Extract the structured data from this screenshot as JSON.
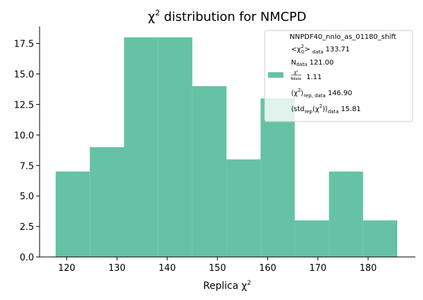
{
  "colors": {
    "bar": "#66c2a5",
    "axis": "#000000",
    "legend_border": "#cccccc"
  },
  "chart_data": {
    "type": "histogram",
    "title_base": "χ",
    "title_sup": "2",
    "title_rest": " distribution for NMCPD",
    "xlabel_base": "Replica χ",
    "xlabel_sup": "2",
    "xlim": [
      114.6,
      189.4
    ],
    "ylim": [
      0,
      18.9
    ],
    "xticks": [
      120,
      130,
      140,
      150,
      160,
      170,
      180
    ],
    "yticks": [
      "0.0",
      "2.5",
      "5.0",
      "7.5",
      "10.0",
      "12.5",
      "15.0",
      "17.5"
    ],
    "bins": [
      117.8,
      124.6,
      131.4,
      138.2,
      145.0,
      151.8,
      158.6,
      165.4,
      172.2,
      179.0,
      185.8
    ],
    "counts": [
      7,
      9,
      18,
      18,
      14,
      8,
      13,
      3,
      7,
      3
    ],
    "legend": {
      "title": "NNPDF40_nnlo_as_01180_shift",
      "entries": [
        {
          "pre": "<χ",
          "sup": "2",
          "sub0": "0",
          "post": "> ",
          "sub": "data",
          "value": "133.71"
        },
        {
          "pre": "N",
          "sub": "data",
          "value": "121.00"
        },
        {
          "frac_num": "χ²",
          "frac_den": "Ndata",
          "value": "1.11"
        },
        {
          "pre": "⟨χ",
          "sup": "2",
          "post": "⟩",
          "sub": "rep, data",
          "value": "146.90"
        },
        {
          "pre": "⟨std",
          "sub1": "rep",
          "mid": "(χ",
          "sup": "2",
          "post": ")⟩",
          "sub": "data",
          "value": "15.81"
        }
      ]
    }
  }
}
